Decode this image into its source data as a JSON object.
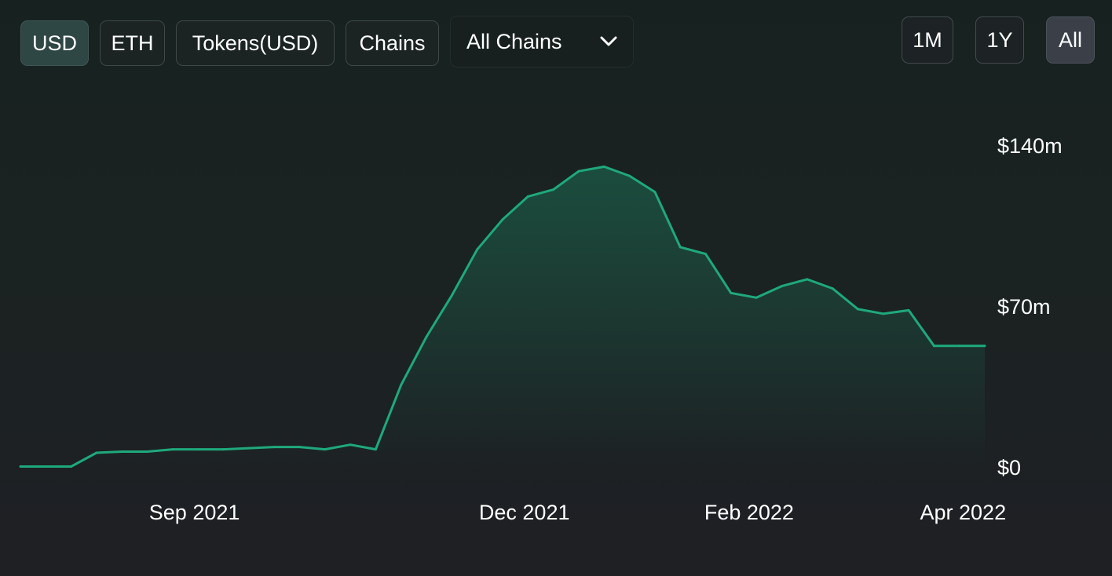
{
  "toolbar": {
    "denomination": [
      {
        "label": "USD",
        "active": true
      },
      {
        "label": "ETH",
        "active": false
      },
      {
        "label": "Tokens(USD)",
        "active": false
      },
      {
        "label": "Chains",
        "active": false
      }
    ],
    "chain_select": {
      "value": "All Chains",
      "icon": "chevron-down-icon"
    },
    "ranges": [
      {
        "label": "1M",
        "active": false
      },
      {
        "label": "1Y",
        "active": false
      },
      {
        "label": "All",
        "active": true
      }
    ]
  },
  "colors": {
    "line": "#1ea97c",
    "background": "#1e2024",
    "button_active": "#2e4644"
  },
  "chart_data": {
    "type": "area",
    "title": "",
    "xlabel": "",
    "ylabel": "",
    "unit": "USD",
    "x_ticks": [
      "Sep 2021",
      "Dec 2021",
      "Feb 2022",
      "Apr 2022"
    ],
    "y_ticks": [
      "$140m",
      "$70m",
      "$0"
    ],
    "y_tick_values": [
      140,
      70,
      0
    ],
    "ylim": [
      0,
      140
    ],
    "y_axis_position": "right",
    "grid": false,
    "x": [
      "2021-07-15",
      "2021-07-22",
      "2021-07-29",
      "2021-08-05",
      "2021-08-12",
      "2021-08-19",
      "2021-08-26",
      "2021-09-02",
      "2021-09-09",
      "2021-09-16",
      "2021-09-23",
      "2021-09-30",
      "2021-10-07",
      "2021-10-14",
      "2021-10-21",
      "2021-10-28",
      "2021-11-04",
      "2021-11-11",
      "2021-11-18",
      "2021-11-25",
      "2021-12-02",
      "2021-12-09",
      "2021-12-16",
      "2021-12-23",
      "2021-12-30",
      "2022-01-06",
      "2022-01-13",
      "2022-01-20",
      "2022-01-27",
      "2022-02-03",
      "2022-02-10",
      "2022-02-17",
      "2022-02-24",
      "2022-03-03",
      "2022-03-10",
      "2022-03-17",
      "2022-03-24",
      "2022-03-31",
      "2022-04-07"
    ],
    "series": [
      {
        "values": [
          0.5,
          0.5,
          0.5,
          6.5,
          7.0,
          7.0,
          8.0,
          8.0,
          8.0,
          8.5,
          9.0,
          9.0,
          8.0,
          10.0,
          8.0,
          36.0,
          57.0,
          75.0,
          95.0,
          108.0,
          118.0,
          121.0,
          129.0,
          131.0,
          127.0,
          120.0,
          96.0,
          93.0,
          76.0,
          74.0,
          79.0,
          82.0,
          78.0,
          69.0,
          67.0,
          68.5,
          53.0,
          53.0,
          53.0
        ]
      }
    ]
  }
}
